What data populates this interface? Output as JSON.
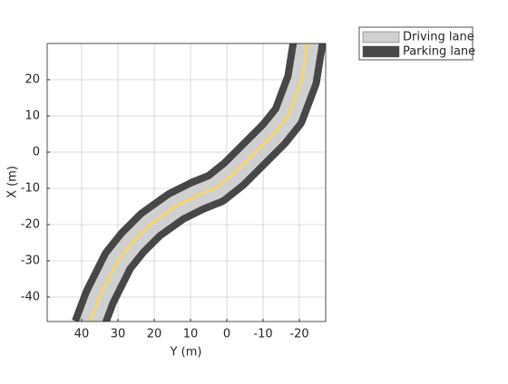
{
  "chart_data": {
    "type": "road",
    "xlabel": "Y (m)",
    "ylabel": "X (m)",
    "xlim": [
      49.5,
      -27.25
    ],
    "ylim": [
      -46.75,
      30
    ],
    "xticks": [
      40,
      30,
      20,
      10,
      0,
      -10,
      -20
    ],
    "yticks": [
      -40,
      -30,
      -20,
      -10,
      0,
      10,
      20
    ],
    "grid": true,
    "legend": "outside-top-right",
    "centerline": {
      "color": "#ffd85a",
      "x": [
        38,
        35,
        30,
        26,
        21,
        14,
        8,
        3,
        -2,
        -8,
        -13,
        -17,
        -20.75,
        -22.5
      ],
      "y": [
        -48,
        -40,
        -30,
        -25,
        -20,
        -15,
        -12,
        -10,
        -6,
        0,
        5,
        10,
        20,
        31
      ]
    },
    "series": [
      {
        "name": "Parking lane",
        "color": "#474747",
        "width": 10
      },
      {
        "name": "Driving lane",
        "color": "#d0d0d0",
        "width": 6
      }
    ],
    "legend_order": [
      1,
      0
    ]
  }
}
